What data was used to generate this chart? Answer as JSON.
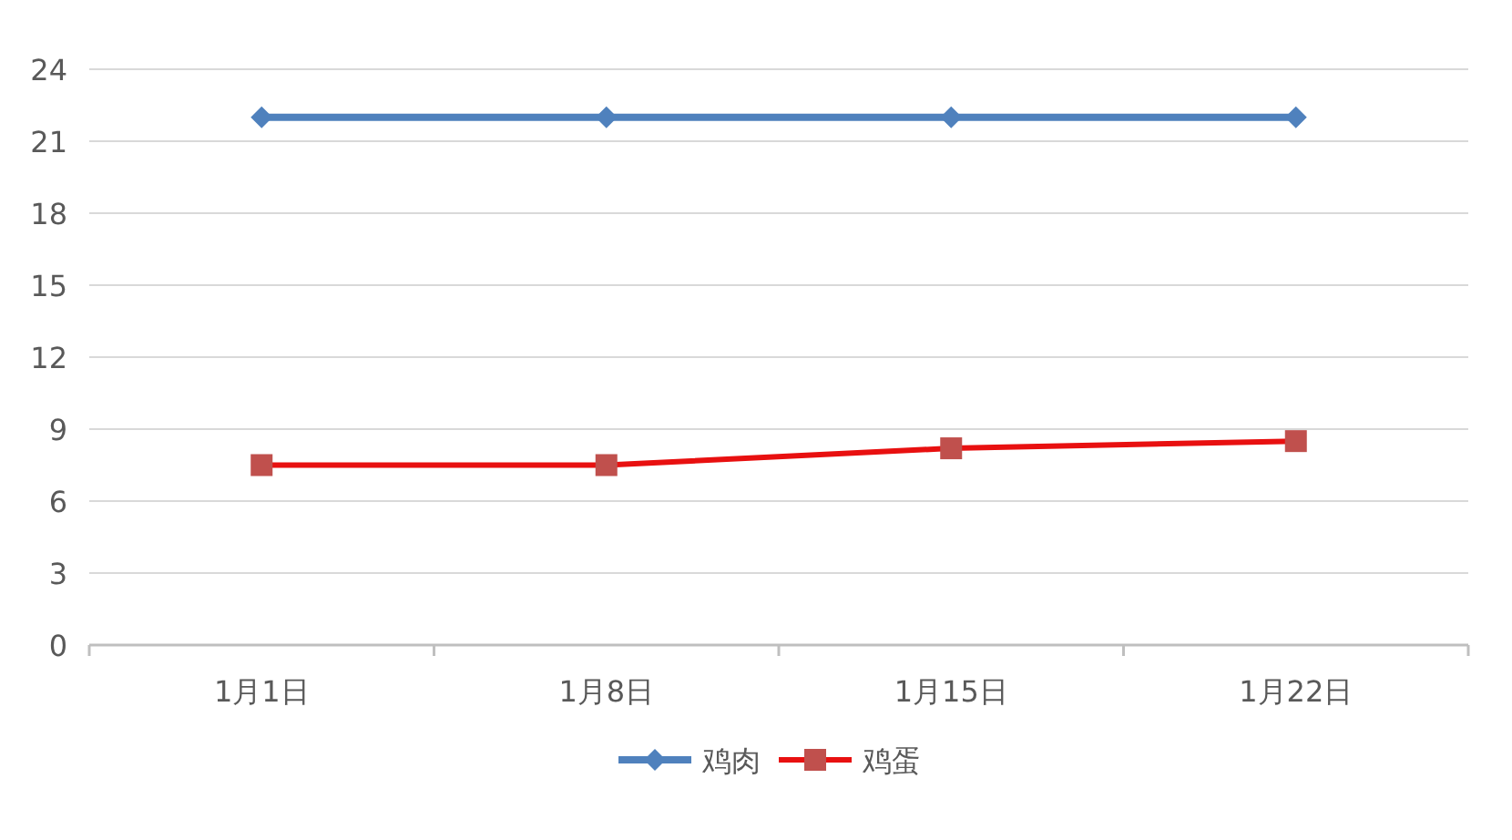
{
  "chart_data": {
    "type": "line",
    "categories": [
      "1月1日",
      "1月8日",
      "1月15日",
      "1月22日"
    ],
    "series": [
      {
        "name": "鸡肉",
        "color": "#4f81bd",
        "marker": "diamond",
        "values": [
          22,
          22,
          22,
          22
        ]
      },
      {
        "name": "鸡蛋",
        "color": "#e81010",
        "marker": "square",
        "colors": [
          "#c0504d",
          "#c0504d",
          "#c0504d",
          "#c0504d"
        ],
        "values": [
          7.5,
          7.5,
          8.2,
          8.5
        ]
      }
    ],
    "ylim": [
      0,
      24
    ],
    "yticks": [
      0,
      3,
      6,
      9,
      12,
      15,
      18,
      21,
      24
    ],
    "grid": "y",
    "legend": "bottom"
  }
}
